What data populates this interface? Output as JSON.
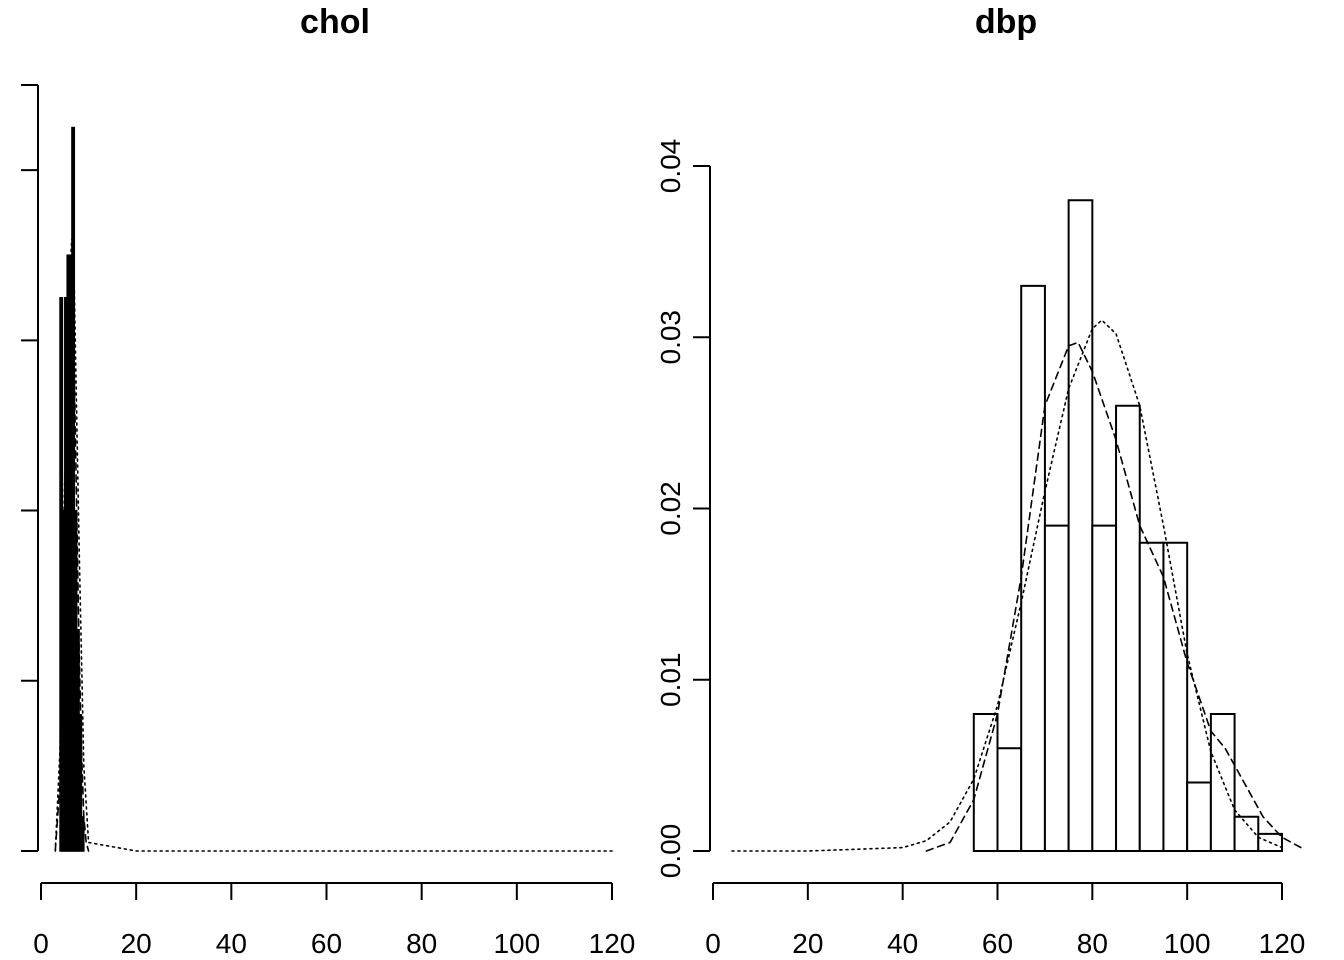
{
  "chart_data": [
    {
      "type": "histogram",
      "title": "chol",
      "xlim": [
        0,
        120
      ],
      "ylim": [
        0,
        0.45
      ],
      "x_ticks": [
        0,
        20,
        40,
        60,
        80,
        100,
        120
      ],
      "x_tick_labels": [
        "0",
        "20",
        "40",
        "60",
        "80",
        "100",
        "120"
      ],
      "y_ticks": [
        0,
        0.1,
        0.2,
        0.3,
        0.4,
        0.45
      ],
      "y_tick_labels": [],
      "bins": [
        {
          "x0": 4.0,
          "x1": 4.5,
          "density": 0.325
        },
        {
          "x0": 4.5,
          "x1": 5.0,
          "density": 0.2
        },
        {
          "x0": 5.0,
          "x1": 5.5,
          "density": 0.325
        },
        {
          "x0": 5.5,
          "x1": 6.0,
          "density": 0.35
        },
        {
          "x0": 6.0,
          "x1": 6.5,
          "density": 0.35
        },
        {
          "x0": 6.5,
          "x1": 7.0,
          "density": 0.425
        },
        {
          "x0": 7.0,
          "x1": 7.5,
          "density": 0.2
        },
        {
          "x0": 7.5,
          "x1": 8.0,
          "density": 0.13
        },
        {
          "x0": 8.0,
          "x1": 8.5,
          "density": 0.08
        },
        {
          "x0": 8.5,
          "x1": 9.0,
          "density": 0.02
        }
      ],
      "curves": [
        {
          "style": "dashed",
          "x": [
            3.0,
            4.0,
            5.0,
            5.5,
            6.0,
            6.5,
            7.0,
            7.5,
            8.0,
            8.5,
            9.0,
            9.5,
            10.0
          ],
          "y": [
            0.0,
            0.04,
            0.2,
            0.3,
            0.35,
            0.34,
            0.28,
            0.2,
            0.12,
            0.06,
            0.02,
            0.005,
            0.0
          ]
        },
        {
          "style": "dotted",
          "x": [
            3.0,
            4.0,
            5.0,
            6.0,
            6.5,
            7.0,
            8.0,
            9.0,
            10.0,
            20,
            40,
            60,
            80,
            100,
            120
          ],
          "y": [
            0.0,
            0.06,
            0.22,
            0.34,
            0.36,
            0.33,
            0.18,
            0.05,
            0.005,
            0,
            0,
            0,
            0,
            0,
            0
          ]
        }
      ]
    },
    {
      "type": "histogram",
      "title": "dbp",
      "xlim": [
        0,
        120
      ],
      "ylim": [
        0,
        0.04
      ],
      "x_ticks": [
        0,
        20,
        40,
        60,
        80,
        100,
        120
      ],
      "x_tick_labels": [
        "0",
        "20",
        "40",
        "60",
        "80",
        "100",
        "120"
      ],
      "y_ticks": [
        0.0,
        0.01,
        0.02,
        0.03,
        0.04
      ],
      "y_tick_labels": [
        "0.00",
        "0.01",
        "0.02",
        "0.03",
        "0.04"
      ],
      "bins": [
        {
          "x0": 55,
          "x1": 60,
          "density": 0.008
        },
        {
          "x0": 60,
          "x1": 65,
          "density": 0.006
        },
        {
          "x0": 65,
          "x1": 70,
          "density": 0.033
        },
        {
          "x0": 70,
          "x1": 75,
          "density": 0.019
        },
        {
          "x0": 75,
          "x1": 80,
          "density": 0.038
        },
        {
          "x0": 80,
          "x1": 85,
          "density": 0.019
        },
        {
          "x0": 85,
          "x1": 90,
          "density": 0.026
        },
        {
          "x0": 90,
          "x1": 95,
          "density": 0.018
        },
        {
          "x0": 95,
          "x1": 100,
          "density": 0.018
        },
        {
          "x0": 100,
          "x1": 105,
          "density": 0.004
        },
        {
          "x0": 105,
          "x1": 110,
          "density": 0.008
        },
        {
          "x0": 110,
          "x1": 115,
          "density": 0.002
        },
        {
          "x0": 115,
          "x1": 120,
          "density": 0.001
        }
      ],
      "curves": [
        {
          "style": "dashed",
          "x": [
            45,
            50,
            55,
            60,
            65,
            70,
            75,
            77,
            80,
            85,
            90,
            95,
            100,
            105,
            108,
            112,
            116,
            120,
            124
          ],
          "y": [
            0.0,
            0.0005,
            0.003,
            0.008,
            0.016,
            0.026,
            0.0295,
            0.0297,
            0.028,
            0.024,
            0.019,
            0.016,
            0.011,
            0.007,
            0.006,
            0.004,
            0.002,
            0.0008,
            0.0002
          ]
        },
        {
          "style": "dotted",
          "x": [
            4,
            20,
            40,
            45,
            50,
            55,
            60,
            65,
            70,
            75,
            80,
            82,
            85,
            90,
            95,
            100,
            105,
            110,
            115,
            120
          ],
          "y": [
            0.0,
            0.0,
            0.0002,
            0.0006,
            0.0017,
            0.0042,
            0.0085,
            0.0145,
            0.021,
            0.027,
            0.0305,
            0.031,
            0.0302,
            0.026,
            0.019,
            0.0115,
            0.0058,
            0.0024,
            0.0008,
            0.0002
          ]
        }
      ]
    }
  ]
}
